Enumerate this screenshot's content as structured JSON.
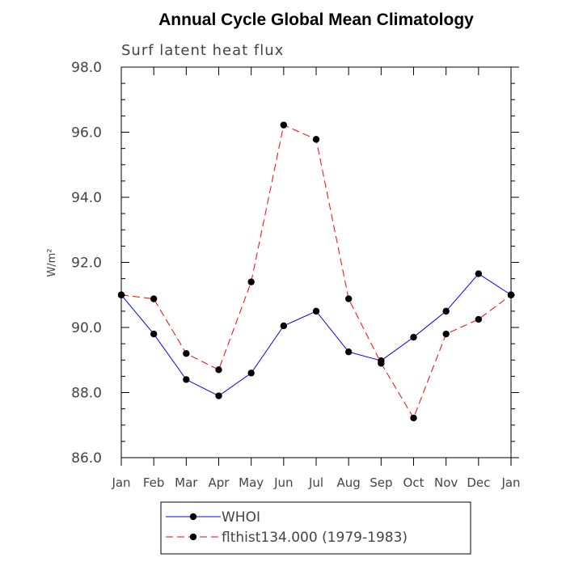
{
  "chart_data": {
    "type": "line",
    "title": "Annual Cycle Global Mean Climatology",
    "subtitle": "Surf latent heat flux",
    "ylabel": "W/m²",
    "xlabel": "",
    "ylim": [
      86.0,
      98.0
    ],
    "yticks": [
      "86.0",
      "88.0",
      "90.0",
      "92.0",
      "94.0",
      "96.0",
      "98.0"
    ],
    "categories": [
      "Jan",
      "Feb",
      "Mar",
      "Apr",
      "May",
      "Jun",
      "Jul",
      "Aug",
      "Sep",
      "Oct",
      "Nov",
      "Dec",
      "Jan"
    ],
    "legend_position": "bottom",
    "grid": false,
    "series": [
      {
        "name": "WHOI",
        "color": "#0000ff",
        "dash": "solid",
        "values": [
          91.0,
          89.8,
          88.4,
          87.9,
          88.6,
          90.05,
          90.5,
          89.25,
          88.98,
          89.7,
          90.5,
          91.65,
          91.0
        ]
      },
      {
        "name": "flthist134.000 (1979-1983)",
        "color": "#ff0000",
        "dash": "dashed",
        "values": [
          91.0,
          90.88,
          89.2,
          88.7,
          91.4,
          96.22,
          95.78,
          90.88,
          88.9,
          87.22,
          89.8,
          90.25,
          91.0
        ]
      }
    ]
  }
}
